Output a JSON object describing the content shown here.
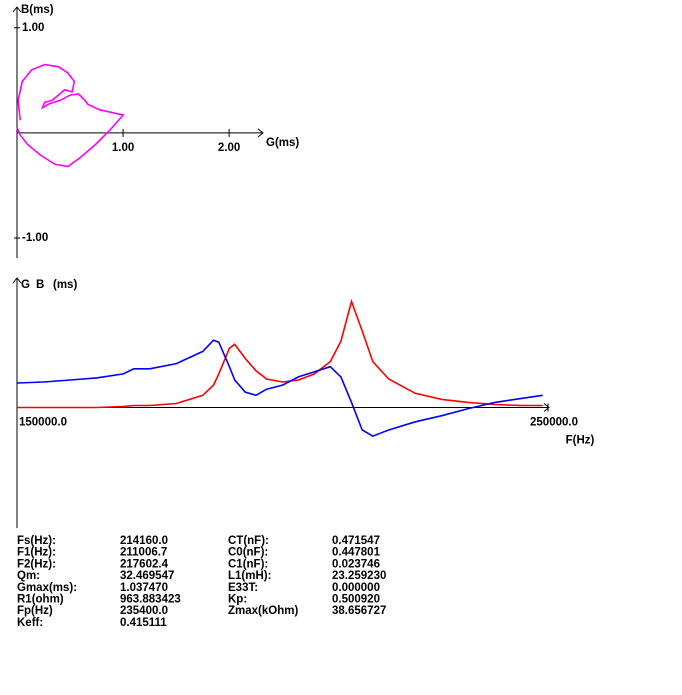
{
  "chart_data": [
    {
      "type": "line",
      "x_label": "G(ms)",
      "y_label": "B(ms)",
      "x": [
        0.03,
        0.01,
        0.05,
        0.14,
        0.26,
        0.39,
        0.48,
        0.54,
        0.52,
        0.45,
        0.39,
        0.33,
        0.26,
        0.24,
        0.31,
        0.41,
        0.5,
        0.58,
        0.64,
        0.67,
        0.78,
        1.0,
        0.88,
        0.74,
        0.59,
        0.48,
        0.36,
        0.22,
        0.1,
        0.03,
        0.0
      ],
      "series": [
        {
          "color": "#ff00ff",
          "values": [
            0.12,
            0.31,
            0.49,
            0.6,
            0.65,
            0.63,
            0.57,
            0.49,
            0.39,
            0.41,
            0.36,
            0.31,
            0.29,
            0.24,
            0.28,
            0.31,
            0.36,
            0.37,
            0.31,
            0.27,
            0.22,
            0.17,
            0.03,
            -0.11,
            -0.24,
            -0.32,
            -0.3,
            -0.21,
            -0.11,
            -0.02,
            0.05
          ]
        }
      ],
      "xlim": [
        0,
        2.31
      ],
      "ylim": [
        -1.19,
        1.15
      ],
      "xticks": [
        {
          "value": 1,
          "label": "1.00"
        },
        {
          "value": 2,
          "label": "2.00"
        }
      ],
      "yticks": [
        {
          "value": 1,
          "label": "1.00"
        },
        {
          "value": -1,
          "label": "-1.00"
        }
      ]
    },
    {
      "type": "line",
      "x_label": "F(Hz)",
      "y_label": "(ms)",
      "x": [
        150000,
        155000,
        160000,
        165000,
        170000,
        172000,
        175000,
        180000,
        185000,
        187000,
        188000,
        190000,
        191000,
        193000,
        195000,
        197000,
        200000,
        203000,
        206000,
        209000,
        211000,
        213000,
        215000,
        217000,
        220000,
        225000,
        230000,
        235000,
        240000,
        245000,
        249000
      ],
      "series": [
        {
          "name": "G",
          "color": "#ff0000",
          "values": [
            0,
            0,
            0,
            0,
            0.01,
            0.02,
            0.02,
            0.04,
            0.12,
            0.22,
            0.33,
            0.58,
            0.62,
            0.48,
            0.36,
            0.28,
            0.25,
            0.27,
            0.33,
            0.45,
            0.65,
            1.04,
            0.75,
            0.45,
            0.28,
            0.14,
            0.08,
            0.05,
            0.03,
            0.02,
            0.02
          ]
        },
        {
          "name": "B",
          "color": "#0000ff",
          "values": [
            0.24,
            0.25,
            0.27,
            0.29,
            0.33,
            0.38,
            0.38,
            0.43,
            0.55,
            0.66,
            0.64,
            0.4,
            0.27,
            0.15,
            0.12,
            0.18,
            0.22,
            0.3,
            0.35,
            0.4,
            0.3,
            0.05,
            -0.22,
            -0.28,
            -0.22,
            -0.14,
            -0.08,
            -0.01,
            0.05,
            0.09,
            0.12
          ]
        }
      ],
      "xlim": [
        150000,
        250000
      ],
      "ylim": [
        -1.18,
        1.22
      ],
      "xticks": [
        {
          "value": 150000,
          "label": "150000.0"
        },
        {
          "value": 250000,
          "label": "250000.0"
        }
      ]
    }
  ],
  "parameters": {
    "left": [
      [
        "Fs(Hz):",
        "214160.0"
      ],
      [
        "F1(Hz):",
        "211006.7"
      ],
      [
        "F2(Hz):",
        "217602.4"
      ],
      [
        "Qm:",
        "32.469547"
      ],
      [
        "Gmax(ms):",
        "1.037470"
      ],
      [
        "R1(ohm)",
        "963.883423"
      ],
      [
        "Fp(Hz)",
        "235400.0"
      ],
      [
        "Keff:",
        "0.415111"
      ]
    ],
    "right": [
      [
        "CT(nF):",
        "0.471547"
      ],
      [
        "C0(nF):",
        "0.447801"
      ],
      [
        "C1(nF):",
        "0.023746"
      ],
      [
        "L1(mH):",
        "23.259230"
      ],
      [
        "E33T:",
        "0.000000"
      ],
      [
        "Kp:",
        "0.500920"
      ],
      [
        "Zmax(kOhm)",
        "38.656727"
      ]
    ]
  }
}
